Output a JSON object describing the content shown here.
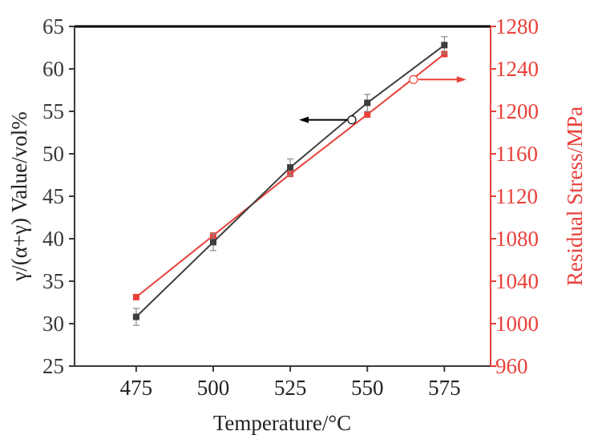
{
  "chart_data": {
    "type": "line",
    "title": "",
    "xlabel": "Temperature/°C",
    "ylabel_left": "γ/(α+γ) Value/vol%",
    "ylabel_right": "Residual Stress/MPa",
    "x": [
      475,
      500,
      525,
      550,
      575
    ],
    "xlim": [
      455,
      590
    ],
    "x_ticks": [
      "475",
      "500",
      "525",
      "550",
      "575"
    ],
    "ylim_left": [
      25,
      65
    ],
    "y_ticks_left": [
      "25",
      "30",
      "35",
      "40",
      "45",
      "50",
      "55",
      "60",
      "65"
    ],
    "ylim_right": [
      960,
      1280
    ],
    "y_ticks_right": [
      "960",
      "1000",
      "1040",
      "1080",
      "1120",
      "1160",
      "1200",
      "1240",
      "1280"
    ],
    "series": [
      {
        "name": "γ/(α+γ) Value",
        "axis": "left",
        "color": "#3d3d3d",
        "marker": "square",
        "values": [
          30.8,
          39.6,
          48.4,
          56.0,
          62.8
        ],
        "error": [
          1.0,
          1.0,
          1.0,
          1.0,
          1.0
        ]
      },
      {
        "name": "Residual Stress",
        "axis": "right",
        "color": "#e8403a",
        "marker": "square",
        "values": [
          1025,
          1083,
          1141,
          1197,
          1254
        ]
      }
    ],
    "annotations": [
      {
        "points_to": "left",
        "anchor_x": 545,
        "anchor_y_left": 54,
        "color": "#000000"
      },
      {
        "points_to": "right",
        "anchor_x": 565,
        "anchor_y_right": 1230,
        "color": "#e8403a"
      }
    ],
    "grid": false
  }
}
